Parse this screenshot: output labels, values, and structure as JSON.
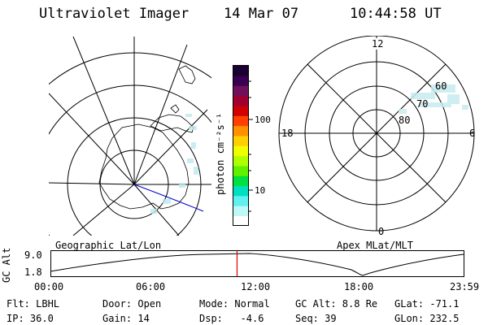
{
  "header": {
    "title": "Ultraviolet Imager",
    "date": "14 Mar 07",
    "time": "10:44:58 UT"
  },
  "colorbar": {
    "label": "photon cm⁻²s⁻¹",
    "ticks": [
      "100",
      "10"
    ],
    "colors": [
      "#1a0033",
      "#3a0050",
      "#70105a",
      "#a00030",
      "#d00000",
      "#ff4000",
      "#ff9000",
      "#ffd000",
      "#f0ff00",
      "#b0ff00",
      "#60f000",
      "#00e040",
      "#00e0c0",
      "#60f0f0",
      "#c0f8f8",
      "#ffffff"
    ]
  },
  "apex_plot": {
    "mlt_labels": {
      "top": "12",
      "left": "18",
      "right": "6",
      "bottom": "0"
    },
    "mlat_labels": [
      "60",
      "70",
      "80"
    ]
  },
  "timeline": {
    "axis_label": "GC Alt",
    "left_label": "Geographic Lat/Lon",
    "right_label": "Apex MLat/MLT",
    "y_ticks": [
      "9.0",
      "1.8"
    ],
    "x_ticks": [
      "00:00",
      "06:00",
      "12:00",
      "18:00",
      "23:59"
    ],
    "current_time_fraction": 0.4517,
    "marker_color": "#e00000"
  },
  "info": {
    "flt": "Flt: LBHL",
    "ip": "IP: 36.0",
    "door": "Door: Open",
    "gain": "Gain: 14",
    "mode": "Mode: Normal",
    "dsp": "Dsp:   -4.6",
    "gc_alt": "GC Alt: 8.8 Re",
    "seq": "Seq: 39",
    "glat": "GLat: -71.1",
    "glon": "GLon: 232.5"
  }
}
